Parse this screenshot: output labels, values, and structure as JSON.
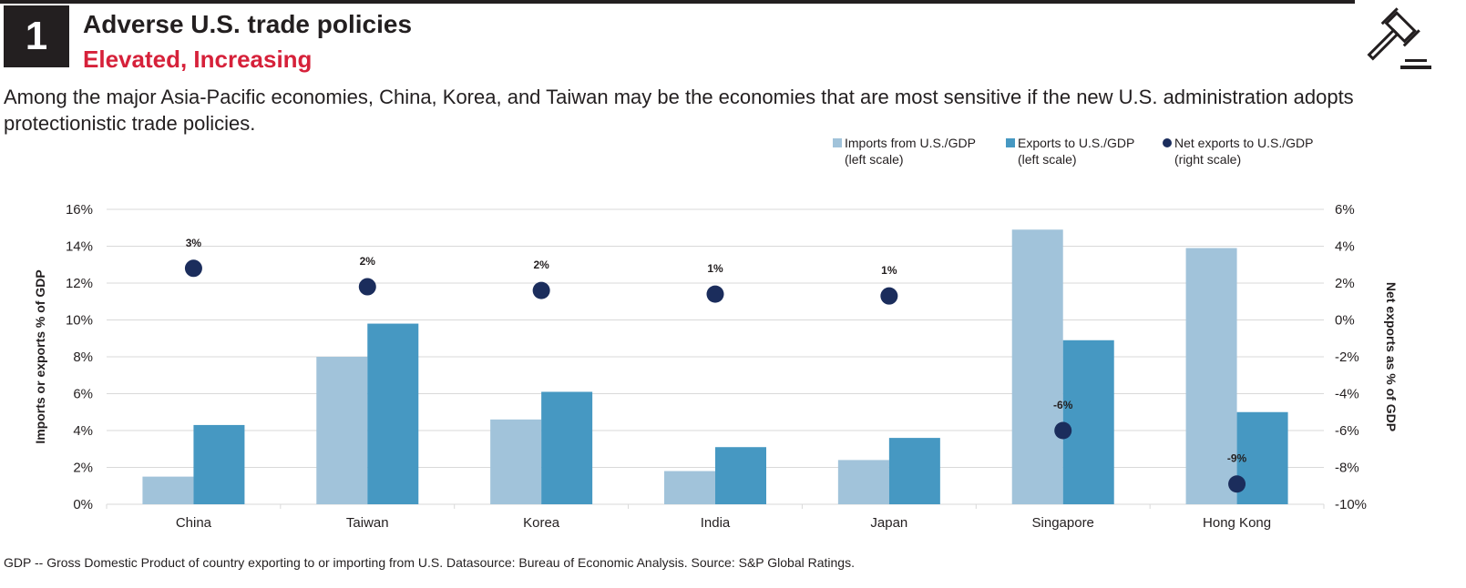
{
  "header": {
    "number": "1",
    "title": "Adverse U.S. trade policies",
    "subtitle": "Elevated, Increasing",
    "icon": "gavel-icon",
    "accent_color": "#d6213a"
  },
  "description": "Among the major Asia-Pacific economies, China, Korea, and Taiwan may be the economies that are most sensitive if the new U.S. administration adopts protectionistic trade policies.",
  "legend": [
    {
      "line1": "Imports from U.S./GDP",
      "line2": "(left scale)",
      "color": "#a1c3da",
      "shape": "square"
    },
    {
      "line1": "Exports to U.S./GDP",
      "line2": "(left scale)",
      "color": "#4698c2",
      "shape": "square"
    },
    {
      "line1": "Net exports to U.S./GDP",
      "line2": "(right scale)",
      "color": "#1b2d5c",
      "shape": "circle"
    }
  ],
  "footer": "GDP -- Gross Domestic Product of country exporting to or importing from U.S. Datasource: Bureau of Economic Analysis. Source: S&P Global Ratings.",
  "chart_data": {
    "type": "bar",
    "categories": [
      "China",
      "Taiwan",
      "Korea",
      "India",
      "Japan",
      "Singapore",
      "Hong Kong"
    ],
    "series": [
      {
        "name": "Imports from U.S./GDP (left scale)",
        "axis": "left",
        "type": "bar",
        "color": "#a1c3da",
        "values": [
          1.5,
          8.0,
          4.6,
          1.8,
          2.4,
          14.9,
          13.9
        ]
      },
      {
        "name": "Exports to U.S./GDP (left scale)",
        "axis": "left",
        "type": "bar",
        "color": "#4698c2",
        "values": [
          4.3,
          9.8,
          6.1,
          3.1,
          3.6,
          8.9,
          5.0
        ]
      },
      {
        "name": "Net exports to U.S./GDP (right scale)",
        "axis": "right",
        "type": "scatter",
        "color": "#1b2d5c",
        "values": [
          2.8,
          1.8,
          1.6,
          1.4,
          1.3,
          -6.0,
          -8.9
        ],
        "labels": [
          "3%",
          "2%",
          "2%",
          "1%",
          "1%",
          "-6%",
          "-9%"
        ]
      }
    ],
    "ylabel": "Imports or exports % of GDP",
    "y2label": "Net exports as % of GDP",
    "ylim": [
      0,
      16
    ],
    "y2lim": [
      -10,
      6
    ],
    "yticks": [
      "0%",
      "2%",
      "4%",
      "6%",
      "8%",
      "10%",
      "12%",
      "14%",
      "16%"
    ],
    "y2ticks": [
      "-10%",
      "-8%",
      "-6%",
      "-4%",
      "-2%",
      "0%",
      "2%",
      "4%",
      "6%"
    ],
    "grid": true,
    "legend_position": "top-right"
  }
}
